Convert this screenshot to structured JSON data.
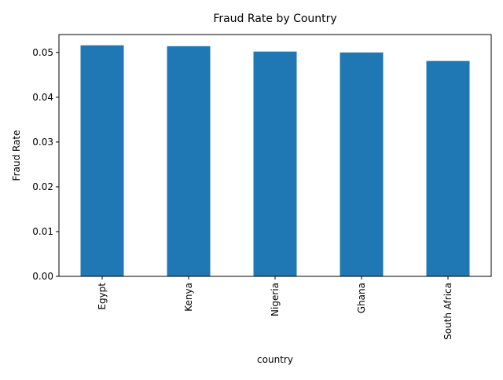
{
  "chart_data": {
    "type": "bar",
    "title": "Fraud Rate by Country",
    "xlabel": "country",
    "ylabel": "Fraud Rate",
    "categories": [
      "Egypt",
      "Kenya",
      "Nigeria",
      "Ghana",
      "South Africa"
    ],
    "values": [
      0.0516,
      0.0514,
      0.0502,
      0.05,
      0.0481
    ],
    "ylim": [
      0,
      0.054
    ],
    "yticks": [
      0.0,
      0.01,
      0.02,
      0.03,
      0.04,
      0.05
    ],
    "ytick_labels": [
      "0.00",
      "0.01",
      "0.02",
      "0.03",
      "0.04",
      "0.05"
    ],
    "grid": false,
    "legend": "none",
    "bar_color": "#1f77b4"
  }
}
